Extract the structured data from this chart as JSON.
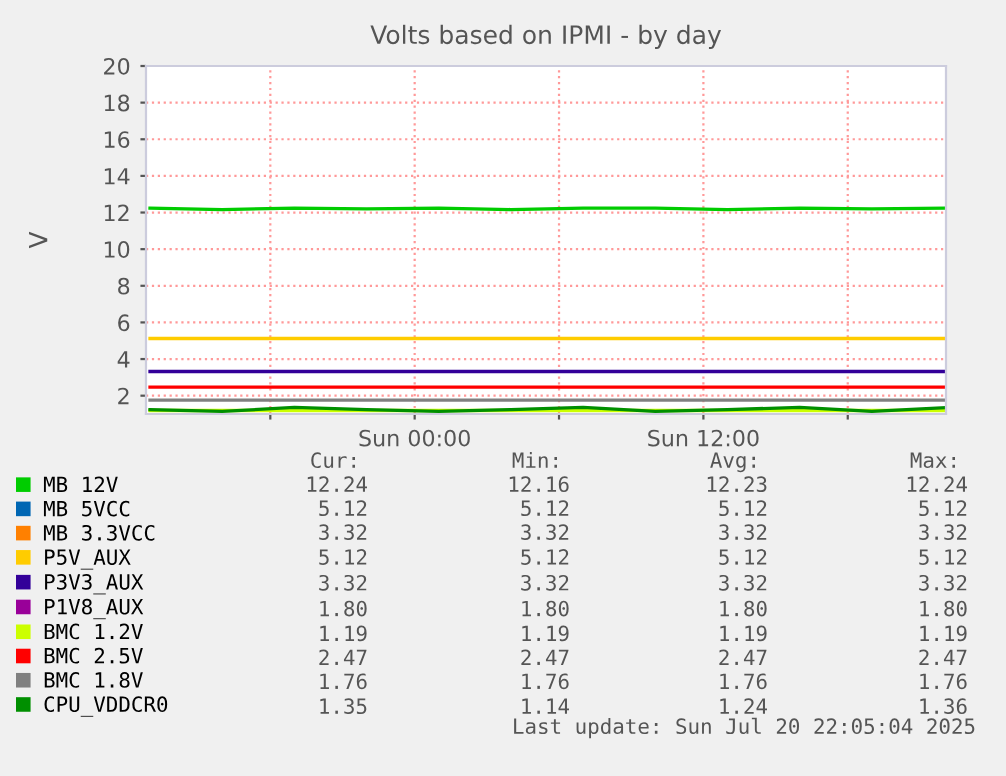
{
  "chart_data": {
    "type": "line",
    "title": "Volts based on IPMI - by day",
    "ylabel": "V",
    "x": [
      "2025-07-19T13:00",
      "2025-07-19T16:00",
      "2025-07-19T19:00",
      "2025-07-19T22:00",
      "2025-07-20T01:00",
      "2025-07-20T04:00",
      "2025-07-20T07:00",
      "2025-07-20T10:00",
      "2025-07-20T13:00",
      "2025-07-20T16:00",
      "2025-07-20T19:00",
      "2025-07-20T22:05"
    ],
    "series": [
      {
        "name": "MB 12V",
        "color": "#00cc00",
        "values": [
          12.24,
          12.16,
          12.24,
          12.2,
          12.24,
          12.16,
          12.24,
          12.24,
          12.16,
          12.24,
          12.2,
          12.24
        ]
      },
      {
        "name": "MB 5VCC",
        "color": "#0066b3",
        "values": [
          null,
          null,
          null,
          null,
          null,
          null,
          null,
          null,
          null,
          null,
          null,
          null
        ]
      },
      {
        "name": "MB 3.3VCC",
        "color": "#ff8000",
        "values": [
          null,
          null,
          null,
          null,
          null,
          null,
          null,
          null,
          null,
          null,
          null,
          null
        ]
      },
      {
        "name": "P5V_AUX",
        "color": "#ffcc00",
        "values": [
          5.12,
          5.12,
          5.12,
          5.12,
          5.12,
          5.12,
          5.12,
          5.12,
          5.12,
          5.12,
          5.12,
          5.12
        ]
      },
      {
        "name": "P3V3_AUX",
        "color": "#330099",
        "values": [
          3.32,
          3.32,
          3.32,
          3.32,
          3.32,
          3.32,
          3.32,
          3.32,
          3.32,
          3.32,
          3.32,
          3.32
        ]
      },
      {
        "name": "P1V8_AUX",
        "color": "#990099",
        "values": [
          null,
          null,
          null,
          null,
          null,
          null,
          null,
          null,
          null,
          null,
          null,
          null
        ]
      },
      {
        "name": "BMC 1.2V",
        "color": "#ccff00",
        "values": [
          1.19,
          1.19,
          1.19,
          1.19,
          1.19,
          1.19,
          1.19,
          1.19,
          1.19,
          1.19,
          1.19,
          1.19
        ]
      },
      {
        "name": "BMC 2.5V",
        "color": "#ff0000",
        "values": [
          2.47,
          2.47,
          2.47,
          2.47,
          2.47,
          2.47,
          2.47,
          2.47,
          2.47,
          2.47,
          2.47,
          2.47
        ]
      },
      {
        "name": "BMC 1.8V",
        "color": "#808080",
        "values": [
          1.76,
          1.76,
          1.76,
          1.76,
          1.76,
          1.76,
          1.76,
          1.76,
          1.76,
          1.76,
          1.76,
          1.76
        ]
      },
      {
        "name": "CPU_VDDCR0",
        "color": "#008f00",
        "values": [
          1.24,
          1.14,
          1.36,
          1.24,
          1.14,
          1.24,
          1.36,
          1.14,
          1.24,
          1.36,
          1.14,
          1.35
        ]
      }
    ],
    "xlim": [
      "2025-07-19T12:50",
      "2025-07-20T22:05"
    ],
    "xticks": [
      {
        "value": "2025-07-19T18:00",
        "label": null
      },
      {
        "value": "2025-07-20T00:00",
        "label": "Sun 00:00"
      },
      {
        "value": "2025-07-20T06:00",
        "label": null
      },
      {
        "value": "2025-07-20T12:00",
        "label": "Sun 12:00"
      },
      {
        "value": "2025-07-20T18:00",
        "label": null
      }
    ],
    "ylim": [
      1,
      20
    ],
    "yticks": [
      2,
      4,
      6,
      8,
      10,
      12,
      14,
      16,
      18,
      20
    ],
    "grid": true,
    "legend": "bottom",
    "marker": "none",
    "line_style": "solid",
    "annotations": [
      "Cur:",
      "Min:",
      "Avg:",
      "Max:",
      "12.24",
      "12.16",
      "12.23",
      "12.24",
      "5.12",
      "5.12",
      "5.12",
      "5.12",
      "3.32",
      "3.32",
      "3.32",
      "3.32",
      "5.12",
      "5.12",
      "5.12",
      "5.12",
      "3.32",
      "3.32",
      "3.32",
      "3.32",
      "1.80",
      "1.80",
      "1.80",
      "1.80",
      "1.19",
      "1.19",
      "1.19",
      "1.19",
      "2.47",
      "2.47",
      "2.47",
      "2.47",
      "1.76",
      "1.76",
      "1.76",
      "1.76",
      "1.35",
      "1.14",
      "1.24",
      "1.36",
      "Last update: Sun Jul 20 22:05:04 2025"
    ]
  }
}
